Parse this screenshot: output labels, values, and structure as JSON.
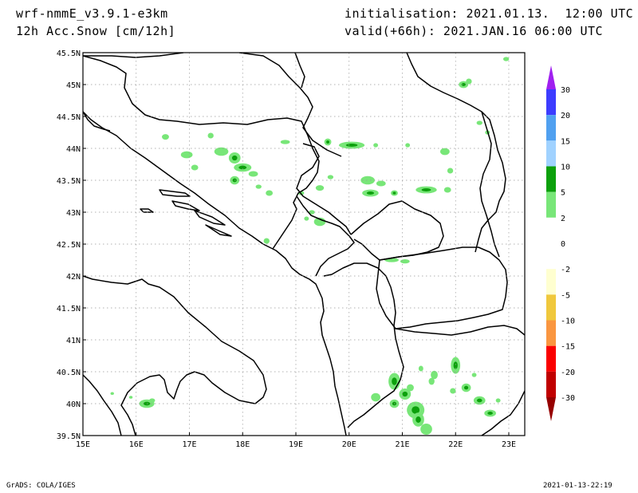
{
  "header": {
    "model": "wrf-nmmE_v3.9.1-e3km",
    "field": "12h Acc.Snow [cm/12h]",
    "init": "initialisation: 2021.01.13.  12:00 UTC",
    "valid": "valid(+66h): 2021.JAN.16 06:00 UTC"
  },
  "footer": {
    "left": "GrADS: COLA/IGES",
    "right": "2021-01-13-22:19"
  },
  "map": {
    "lon_range": [
      15,
      23.3
    ],
    "lat_range": [
      39.5,
      45.5
    ],
    "lon_ticks": [
      "15E",
      "16E",
      "17E",
      "18E",
      "19E",
      "20E",
      "21E",
      "22E",
      "23E"
    ],
    "lat_ticks": [
      "39.5N",
      "40N",
      "40.5N",
      "41N",
      "41.5N",
      "42N",
      "42.5N",
      "43N",
      "43.5N",
      "44N",
      "44.5N",
      "45N",
      "45.5N"
    ],
    "grid": "dotted",
    "land_color": "#ffffff",
    "border_color": "#000000"
  },
  "legend": {
    "placement": "right",
    "levels": [
      "30",
      "20",
      "15",
      "10",
      "5",
      "2",
      "0",
      "-2",
      "-5",
      "-10",
      "-15",
      "-20",
      "-30"
    ],
    "bins": [
      {
        "color": "#a020f0",
        "top": true
      },
      {
        "color": "#3c3cff"
      },
      {
        "color": "#50a0f0"
      },
      {
        "color": "#a0d2ff"
      },
      {
        "color": "#0ca00c"
      },
      {
        "color": "#78e678"
      },
      {
        "color": "#ffffff"
      },
      {
        "color": "#ffffff"
      },
      {
        "color": "#ffffd0"
      },
      {
        "color": "#f0c83c"
      },
      {
        "color": "#fa9640"
      },
      {
        "color": "#fa0000"
      },
      {
        "color": "#c00000"
      },
      {
        "color": "#960000",
        "bottom": true
      }
    ]
  },
  "snow_light_color": "#78e678",
  "snow_mod_color": "#0ca00c"
}
